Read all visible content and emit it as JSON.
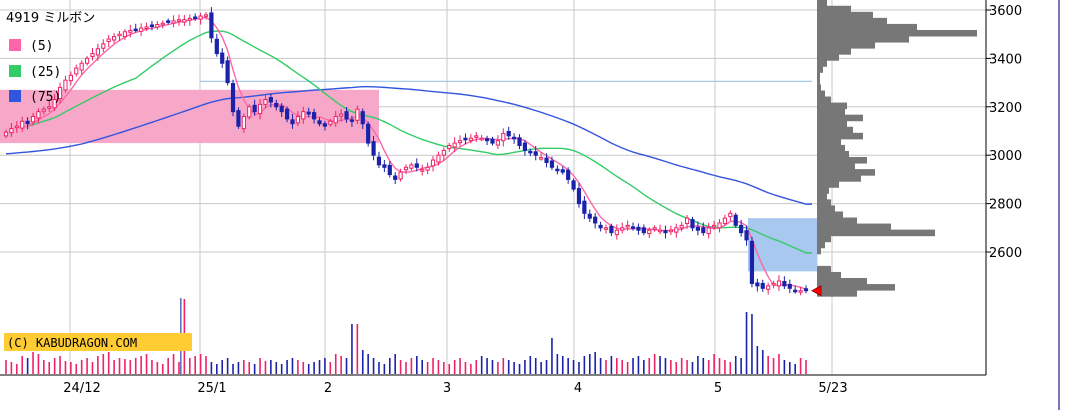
{
  "chart_data": {
    "type": "candlestick",
    "title": "4919 ミルボン",
    "copyright": "(C) KABUDRAGON.COM",
    "legend": [
      {
        "label": "(5)",
        "color": "#ff66aa"
      },
      {
        "label": "(25)",
        "color": "#33cc66"
      },
      {
        "label": "(75)",
        "color": "#3355dd"
      }
    ],
    "y_ticks": [
      "3600",
      "3400",
      "3200",
      "3000",
      "2800",
      "2600"
    ],
    "x_ticks": [
      "24/12",
      "25/1",
      "2",
      "3",
      "4",
      "5",
      "5/23"
    ],
    "ylim": [
      2400,
      3650
    ],
    "grid": true,
    "colors": {
      "up": "#ee2266",
      "down": "#1a22aa",
      "ma5": "#ff66aa",
      "ma25": "#33cc66",
      "ma75": "#3355dd",
      "zone_pink": "#f7a8c8",
      "zone_blue": "#a8c8f0",
      "volume_profile": "#777777",
      "grid": "#c8c8c8",
      "hline": "#a8c8e8",
      "copyright_bg": "#ffcc33"
    },
    "hline_value": 3305,
    "pink_zone": {
      "low": 3050,
      "high": 3270,
      "index_to": 69
    },
    "blue_zone": {
      "low": 2520,
      "high": 2740,
      "index_from": 138,
      "index_to": 149
    },
    "last_marker": 2440,
    "series": {
      "close": [
        3095,
        3110,
        3120,
        3140,
        3130,
        3160,
        3180,
        3190,
        3200,
        3230,
        3280,
        3310,
        3330,
        3360,
        3380,
        3400,
        3420,
        3440,
        3460,
        3480,
        3490,
        3500,
        3510,
        3515,
        3520,
        3525,
        3530,
        3535,
        3540,
        3545,
        3550,
        3555,
        3560,
        3560,
        3565,
        3570,
        3575,
        3580,
        3485,
        3420,
        3380,
        3300,
        3180,
        3120,
        3160,
        3200,
        3180,
        3210,
        3230,
        3220,
        3200,
        3180,
        3150,
        3130,
        3160,
        3180,
        3170,
        3150,
        3130,
        3120,
        3140,
        3160,
        3170,
        3150,
        3140,
        3190,
        3130,
        3050,
        3000,
        2960,
        2950,
        2920,
        2900,
        2930,
        2950,
        2960,
        2950,
        2940,
        2950,
        2980,
        3000,
        3020,
        3040,
        3050,
        3060,
        3065,
        3070,
        3080,
        3070,
        3060,
        3050,
        3060,
        3090,
        3080,
        3070,
        3040,
        3020,
        3010,
        3000,
        2990,
        2970,
        2950,
        2940,
        2930,
        2900,
        2860,
        2800,
        2760,
        2740,
        2720,
        2700,
        2700,
        2680,
        2690,
        2700,
        2710,
        2700,
        2690,
        2680,
        2690,
        2700,
        2690,
        2680,
        2690,
        2700,
        2710,
        2740,
        2700,
        2690,
        2680,
        2700,
        2710,
        2720,
        2740,
        2760,
        2710,
        2680,
        2650,
        2470,
        2460,
        2450,
        2460,
        2470,
        2480,
        2460,
        2450,
        2440,
        2440,
        2440
      ],
      "volume": [
        14,
        12,
        10,
        18,
        16,
        22,
        20,
        14,
        12,
        16,
        18,
        13,
        12,
        10,
        14,
        16,
        12,
        18,
        20,
        22,
        14,
        16,
        15,
        14,
        16,
        18,
        20,
        14,
        12,
        10,
        16,
        20,
        12,
        18,
        16,
        18,
        20,
        18,
        12,
        10,
        14,
        16,
        10,
        12,
        14,
        12,
        10,
        16,
        13,
        14,
        12,
        10,
        14,
        16,
        14,
        12,
        10,
        12,
        14,
        16,
        12,
        20,
        18,
        16,
        14,
        50,
        24,
        20,
        16,
        12,
        10,
        16,
        20,
        14,
        12,
        16,
        18,
        14,
        12,
        16,
        14,
        12,
        10,
        14,
        16,
        12,
        10,
        14,
        18,
        16,
        14,
        12,
        16,
        14,
        12,
        10,
        14,
        18,
        16,
        12,
        14,
        16,
        20,
        18,
        16,
        14,
        12,
        18,
        20,
        22,
        16,
        14,
        18,
        16,
        14,
        12,
        16,
        18,
        14,
        16,
        20,
        18,
        16,
        14,
        12,
        16,
        14,
        12,
        18,
        16,
        14,
        20,
        16,
        14,
        12,
        18,
        16,
        20,
        60,
        28,
        24,
        18,
        16,
        20,
        14,
        12,
        10,
        16,
        14
      ],
      "volume_peaks": {
        "33": 75,
        "64": 50,
        "101": 36,
        "137": 62
      }
    },
    "volume_profile": {
      "prices": [
        2430,
        2455,
        2480,
        2505,
        2530,
        2555,
        2580,
        2605,
        2630,
        2655,
        2680,
        2705,
        2730,
        2755,
        2780,
        2805,
        2830,
        2855,
        2880,
        2905,
        2930,
        2955,
        2980,
        3005,
        3030,
        3055,
        3080,
        3105,
        3130,
        3155,
        3180,
        3205,
        3230,
        3255,
        3280,
        3305,
        3330,
        3355,
        3380,
        3405,
        3430,
        3455,
        3480,
        3505,
        3530,
        3555,
        3580,
        3605,
        3630
      ],
      "volumes": [
        40,
        78,
        50,
        24,
        14,
        0,
        0,
        4,
        8,
        14,
        118,
        74,
        40,
        26,
        18,
        14,
        10,
        12,
        22,
        44,
        58,
        38,
        50,
        32,
        28,
        24,
        46,
        36,
        30,
        46,
        28,
        30,
        14,
        8,
        4,
        3,
        3,
        6,
        10,
        22,
        34,
        58,
        92,
        160,
        100,
        70,
        56,
        34,
        10
      ]
    }
  }
}
